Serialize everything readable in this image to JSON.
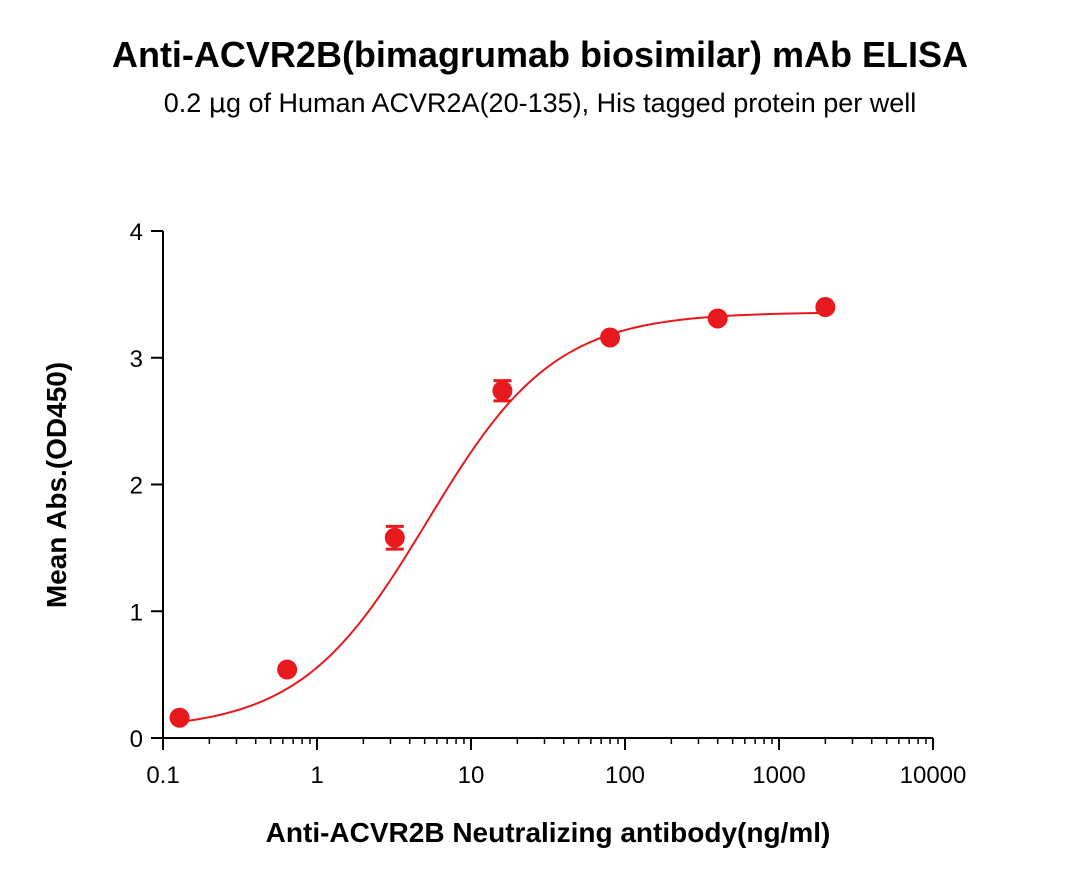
{
  "chart_data": {
    "type": "scatter",
    "title": "Anti-ACVR2B(bimagrumab biosimilar) mAb ELISA",
    "subtitle_prefix": "0.2 ",
    "subtitle_unit": "μ",
    "subtitle_rest": "g of Human ACVR2A(20-135), His tagged protein per well",
    "xlabel": "Anti-ACVR2B Neutralizing antibody(ng/ml)",
    "ylabel": "Mean Abs.(OD450)",
    "x_scale": "log",
    "xlim": [
      0.1,
      10000
    ],
    "ylim": [
      0,
      4
    ],
    "x_ticks": [
      0.1,
      1,
      10,
      100,
      1000,
      10000
    ],
    "x_tick_labels": [
      "0.1",
      "1",
      "10",
      "100",
      "1000",
      "10000"
    ],
    "y_ticks": [
      0,
      1,
      2,
      3,
      4
    ],
    "y_tick_labels": [
      "0",
      "1",
      "2",
      "3",
      "4"
    ],
    "grid": false,
    "color": "#e8191c",
    "series": [
      {
        "x": [
          0.128,
          0.64,
          3.2,
          16,
          80,
          400,
          2000
        ],
        "y": [
          0.16,
          0.54,
          1.58,
          2.74,
          3.16,
          3.31,
          3.4
        ],
        "error": [
          0.02,
          0.02,
          0.09,
          0.08,
          0.02,
          0.02,
          0.02
        ]
      }
    ],
    "fit": {
      "model": "4PL",
      "bottom": 0.06,
      "top": 3.36,
      "ec50": 5.2,
      "hill": 1.05
    }
  }
}
